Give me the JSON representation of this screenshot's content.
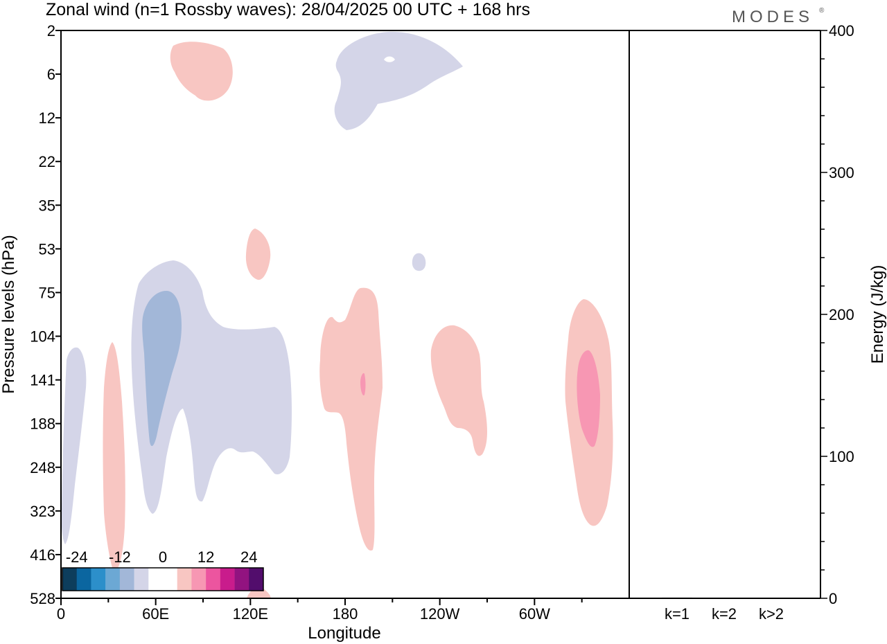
{
  "header": {
    "title": "Zonal wind (n=1 Rossby waves):  28/04/2025  00 UTC  + 168 hrs",
    "brand": "MODES",
    "brand_mark": "®"
  },
  "colors": {
    "neg_light": "#d4d5e8",
    "neg_mid": "#a2b7d8",
    "pos_light": "#f8c6c2",
    "pos_mid": "#f797b3",
    "colorbar": [
      "#0d3d5c",
      "#0b66a0",
      "#2c8fca",
      "#6ca8d4",
      "#a2b7d8",
      "#d4d5e8",
      "#ffffff",
      "#ffffff",
      "#f8c6c2",
      "#f797b3",
      "#ec559f",
      "#c91c8c",
      "#921380",
      "#520d6c"
    ]
  },
  "chart_data": [
    {
      "type": "heatmap",
      "title": "Zonal wind (n=1 Rossby waves):  28/04/2025  00 UTC  + 168 hrs",
      "xlabel": "Longitude",
      "ylabel": "Pressure levels (hPa)",
      "x_ticks": [
        "0",
        "60E",
        "120E",
        "180",
        "120W",
        "60W"
      ],
      "y_ticks": [
        "2",
        "6",
        "12",
        "22",
        "35",
        "53",
        "75",
        "104",
        "141",
        "188",
        "248",
        "323",
        "416",
        "528"
      ],
      "colorbar_labels": [
        "-24",
        "-12",
        "0",
        "12",
        "24"
      ],
      "colorbar_levels": [
        -28,
        -24,
        -20,
        -16,
        -12,
        -8,
        -4,
        0,
        4,
        8,
        12,
        16,
        20,
        24,
        28
      ],
      "y_scale": "pressure levels, top to bottom",
      "features": [
        {
          "sign": "positive",
          "level": "4 to 8",
          "lon_range": [
            70,
            110
          ],
          "hPa_range": [
            3,
            10
          ]
        },
        {
          "sign": "negative",
          "level": "-8 to -4",
          "lon_range": [
            175,
            255
          ],
          "hPa_range": [
            2,
            13
          ]
        },
        {
          "sign": "positive",
          "level": "4 to 8",
          "lon_range": [
            118,
            133
          ],
          "hPa_range": [
            45,
            70
          ]
        },
        {
          "sign": "negative",
          "level": "-8 to -4",
          "lon_range": [
            45,
            145
          ],
          "hPa_range": [
            55,
            290
          ]
        },
        {
          "sign": "negative",
          "level": "-12 to -8",
          "lon_range": [
            52,
            78
          ],
          "hPa_range": [
            75,
            210
          ]
        },
        {
          "sign": "negative",
          "level": "-8 to -4",
          "lon_range": [
            0,
            15
          ],
          "hPa_range": [
            105,
            390
          ]
        },
        {
          "sign": "positive",
          "level": "4 to 8",
          "lon_range": [
            25,
            40
          ],
          "hPa_range": [
            108,
            500
          ]
        },
        {
          "sign": "positive",
          "level": "4 to 8",
          "lon_range": [
            165,
            200
          ],
          "hPa_range": [
            70,
            410
          ]
        },
        {
          "sign": "positive",
          "level": "8 to 12",
          "lon_range": [
            192,
            194
          ],
          "hPa_range": [
            130,
            158
          ]
        },
        {
          "sign": "positive",
          "level": "4 to 8",
          "lon_range": [
            235,
            270
          ],
          "hPa_range": [
            105,
            260
          ]
        },
        {
          "sign": "positive",
          "level": "4 to 8",
          "lon_range": [
            320,
            350
          ],
          "hPa_range": [
            75,
            335
          ]
        },
        {
          "sign": "positive",
          "level": "8 to 12",
          "lon_range": [
            329,
            342
          ],
          "hPa_range": [
            120,
            200
          ]
        },
        {
          "sign": "negative",
          "level": "-8 to -4",
          "lon_range": [
            222,
            230
          ],
          "hPa_range": [
            52,
            57
          ]
        }
      ]
    },
    {
      "type": "bar",
      "categories": [
        "k=1",
        "k=2",
        "k>2"
      ],
      "values": [
        0.5,
        0.3,
        0.4
      ],
      "ylabel": "Energy (J/kg)",
      "ylim": [
        0,
        400
      ],
      "y_ticks": [
        "0",
        "100",
        "200",
        "300",
        "400"
      ]
    }
  ]
}
